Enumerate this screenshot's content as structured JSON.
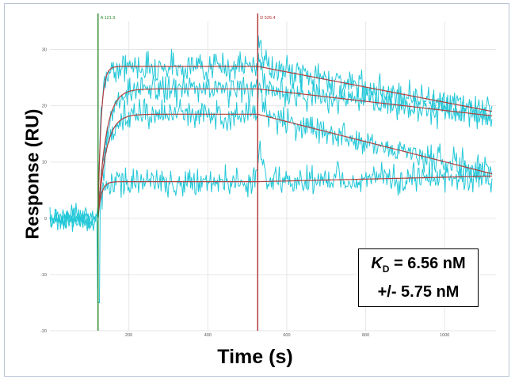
{
  "chart_data": {
    "type": "line",
    "title": "",
    "xlabel": "Time (s)",
    "ylabel": "Response (RU)",
    "xlim": [
      0,
      1130
    ],
    "ylim": [
      -20,
      35
    ],
    "x_ticks": [
      {
        "value": 200,
        "label": "200"
      },
      {
        "value": 400,
        "label": "400"
      },
      {
        "value": 600,
        "label": "600"
      },
      {
        "value": 800,
        "label": "800"
      },
      {
        "value": 1000,
        "label": "1000"
      }
    ],
    "y_ticks": [
      {
        "value": 30,
        "label": "30"
      },
      {
        "value": 20,
        "label": "20"
      },
      {
        "value": 10,
        "label": "10"
      },
      {
        "value": 0,
        "label": "0"
      },
      {
        "value": -10,
        "label": "-10"
      },
      {
        "value": -20,
        "label": "-20"
      }
    ],
    "grid": true,
    "markers": [
      {
        "label": "A 121.9",
        "x": 121.9,
        "color": "#2e8b2e"
      },
      {
        "label": "D 526.4",
        "x": 526.4,
        "color": "#b03030"
      }
    ],
    "injection_start": 121.9,
    "dissociation_start": 526.4,
    "x_end": 1120,
    "series": [
      {
        "style": "fit",
        "plateau": 27.0,
        "kon": 0.13,
        "y_end": 19.0,
        "noise": 1.6,
        "dip": 0,
        "color": "#b04040"
      },
      {
        "style": "fit",
        "plateau": 23.0,
        "kon": 0.05,
        "y_end": 18.2,
        "noise": 1.6,
        "dip": 0,
        "color": "#b04040"
      },
      {
        "style": "fit",
        "plateau": 18.5,
        "kon": 0.05,
        "y_end": 7.9,
        "noise": 1.6,
        "dip": 0,
        "color": "#b04040"
      },
      {
        "style": "fit",
        "plateau": 6.5,
        "kon": 0.12,
        "y_end": 7.5,
        "noise": 1.6,
        "dip": -15,
        "color": "#b04040"
      }
    ],
    "data_color": "#22c8d8",
    "colors": {
      "injection_line": "#2e8b2e",
      "dissociation_line": "#b03030",
      "fit": "#b04040",
      "data": "#22c8d8"
    },
    "kd_label": {
      "symbol": "K",
      "subscript": "D",
      "value": "= 6.56 nM",
      "error": "+/- 5.75 nM"
    }
  }
}
